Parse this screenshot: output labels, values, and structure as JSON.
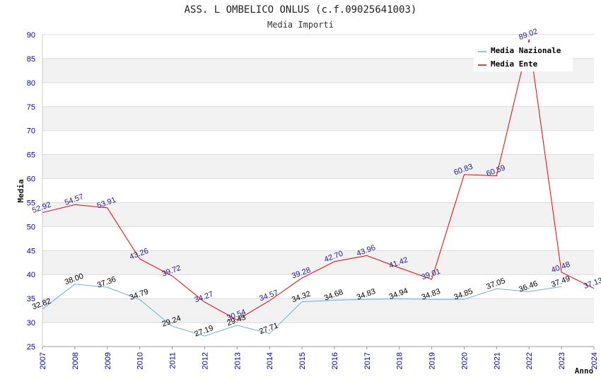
{
  "chart_data": {
    "type": "line",
    "title": "ASS. L OMBELICO ONLUS (c.f.09025641003)",
    "subtitle": "Media Importi",
    "xlabel": "Anno",
    "ylabel": "Media",
    "ylim": [
      25,
      90
    ],
    "ytick_step": 5,
    "grid": true,
    "legend_position": "top-right",
    "x": [
      "2007",
      "2008",
      "2009",
      "2010",
      "2011",
      "2012",
      "2013",
      "2014",
      "2015",
      "2016",
      "2017",
      "2018",
      "2019",
      "2020",
      "2021",
      "2022",
      "2023",
      "2024"
    ],
    "series": [
      {
        "name": "Media Nazionale",
        "color": "#6aaee8",
        "label_color": "#000000",
        "values": [
          32.82,
          38.0,
          37.36,
          34.79,
          29.24,
          27.19,
          29.43,
          27.71,
          34.32,
          34.68,
          34.83,
          34.94,
          34.83,
          34.85,
          37.05,
          36.46,
          37.49,
          null
        ],
        "labels": [
          "32.82",
          "38.00",
          "37.36",
          "34.79",
          "29.24",
          "27.19",
          "29.43",
          "27.71",
          "34.32",
          "34.68",
          "34.83",
          "34.94",
          "34.83",
          "34.85",
          "37.05",
          "36.46",
          "37.49",
          null
        ]
      },
      {
        "name": "Media Ente",
        "color": "#ee0000",
        "label_color": "#1a1a8c",
        "values": [
          52.92,
          54.57,
          53.91,
          43.26,
          39.72,
          34.27,
          30.54,
          34.57,
          39.28,
          42.7,
          43.96,
          41.42,
          39.01,
          60.83,
          60.59,
          89.02,
          40.48,
          37.13
        ],
        "labels": [
          "52.92",
          "54.57",
          "53.91",
          "43.26",
          "39.72",
          "34.27",
          "30.54",
          "34.57",
          "39.28",
          "42.70",
          "43.96",
          "41.42",
          "39.01",
          "60.83",
          "60.59",
          "89.02",
          "40.48",
          "37.13"
        ]
      }
    ]
  }
}
